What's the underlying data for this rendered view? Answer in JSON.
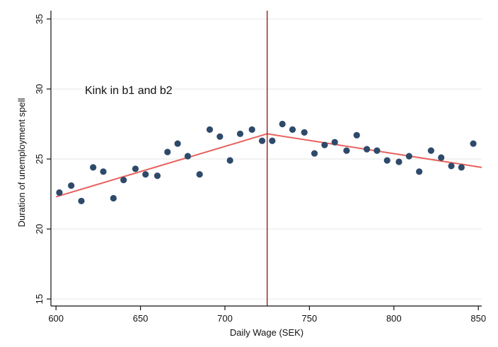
{
  "chart_data": {
    "type": "scatter",
    "title": "",
    "xlabel": "Daily Wage (SEK)",
    "ylabel": "Duration of unemployment spell",
    "xlim": [
      597,
      852
    ],
    "ylim": [
      14.5,
      35.6
    ],
    "xticks": [
      600,
      650,
      700,
      750,
      800,
      850
    ],
    "yticks": [
      15,
      20,
      25,
      30,
      35
    ],
    "xtick_labels": [
      "600",
      "650",
      "700",
      "750",
      "800",
      "850"
    ],
    "ytick_labels": [
      "15",
      "20",
      "25",
      "30",
      "35"
    ],
    "grid": "horizontal",
    "annotation": "Kink in b1 and b2",
    "kink_x": 725,
    "points": [
      {
        "x": 602,
        "y": 22.6
      },
      {
        "x": 609,
        "y": 23.1
      },
      {
        "x": 615,
        "y": 22.0
      },
      {
        "x": 622,
        "y": 24.4
      },
      {
        "x": 628,
        "y": 24.1
      },
      {
        "x": 634,
        "y": 22.2
      },
      {
        "x": 640,
        "y": 23.5
      },
      {
        "x": 647,
        "y": 24.3
      },
      {
        "x": 653,
        "y": 23.9
      },
      {
        "x": 660,
        "y": 23.8
      },
      {
        "x": 666,
        "y": 25.5
      },
      {
        "x": 672,
        "y": 26.1
      },
      {
        "x": 678,
        "y": 25.2
      },
      {
        "x": 685,
        "y": 23.9
      },
      {
        "x": 691,
        "y": 27.1
      },
      {
        "x": 697,
        "y": 26.6
      },
      {
        "x": 703,
        "y": 24.9
      },
      {
        "x": 709,
        "y": 26.8
      },
      {
        "x": 716,
        "y": 27.1
      },
      {
        "x": 722,
        "y": 26.3
      },
      {
        "x": 728,
        "y": 26.3
      },
      {
        "x": 734,
        "y": 27.5
      },
      {
        "x": 740,
        "y": 27.1
      },
      {
        "x": 747,
        "y": 26.9
      },
      {
        "x": 753,
        "y": 25.4
      },
      {
        "x": 759,
        "y": 26.0
      },
      {
        "x": 765,
        "y": 26.2
      },
      {
        "x": 772,
        "y": 25.6
      },
      {
        "x": 778,
        "y": 26.7
      },
      {
        "x": 784,
        "y": 25.7
      },
      {
        "x": 790,
        "y": 25.6
      },
      {
        "x": 796,
        "y": 24.9
      },
      {
        "x": 803,
        "y": 24.8
      },
      {
        "x": 809,
        "y": 25.2
      },
      {
        "x": 815,
        "y": 24.1
      },
      {
        "x": 822,
        "y": 25.6
      },
      {
        "x": 828,
        "y": 25.1
      },
      {
        "x": 834,
        "y": 24.5
      },
      {
        "x": 840,
        "y": 24.4
      },
      {
        "x": 847,
        "y": 26.1
      }
    ],
    "fit_lines": [
      {
        "x": [
          600,
          725
        ],
        "y": [
          22.3,
          26.8
        ]
      },
      {
        "x": [
          725,
          852
        ],
        "y": [
          26.8,
          24.4
        ]
      }
    ],
    "colors": {
      "points": "#2e4a6b",
      "fit": "#e8625e",
      "kink_line": "#9b2b2b",
      "grid": "#e6e6e6",
      "axis": "#111111"
    }
  }
}
